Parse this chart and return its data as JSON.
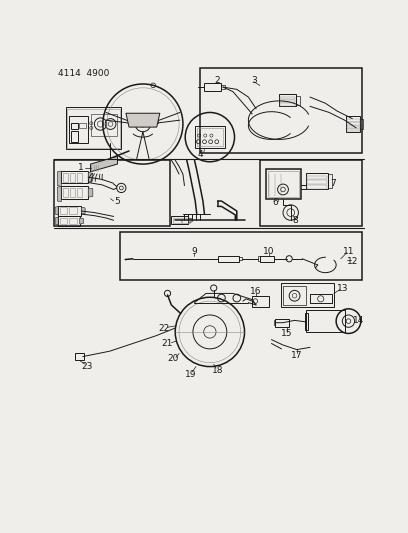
{
  "title": "4114  4900",
  "bg_color": "#f0eeeb",
  "line_color": "#1a1a1a",
  "figsize": [
    4.08,
    5.33
  ],
  "dpi": 100,
  "gray": "#888888",
  "darkgray": "#555555",
  "lightgray": "#cccccc"
}
